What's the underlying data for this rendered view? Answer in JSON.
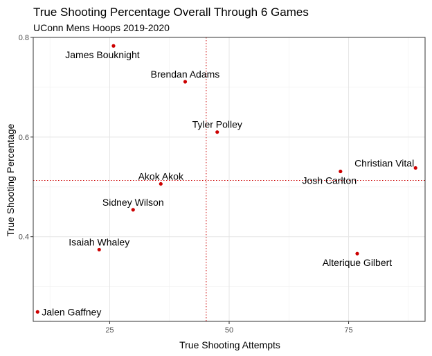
{
  "chart_data": {
    "type": "scatter",
    "title": "True Shooting Percentage Overall Through 6 Games",
    "subtitle": "UConn Mens Hoops 2019-2020",
    "xlabel": "True Shooting Attempts",
    "ylabel": "True Shooting Percentage",
    "xlim": [
      9.0,
      91.0
    ],
    "ylim": [
      0.23,
      0.8
    ],
    "x_ticks": [
      25,
      50,
      75
    ],
    "y_ticks": [
      0.4,
      0.6,
      0.8
    ],
    "x_tick_labels": [
      "25",
      "50",
      "75"
    ],
    "y_tick_labels": [
      "0.4",
      "0.6",
      "0.8"
    ],
    "grid": true,
    "point_color": "#cc0000",
    "reference_line_color": "#cc0000",
    "vline_x": 45.2,
    "hline_y": 0.513,
    "points": [
      {
        "label": "James Bouknight",
        "x": 25.8,
        "y": 0.783,
        "label_pos": "below-left"
      },
      {
        "label": "Brendan Adams",
        "x": 40.8,
        "y": 0.711,
        "label_pos": "above"
      },
      {
        "label": "Tyler Polley",
        "x": 47.5,
        "y": 0.61,
        "label_pos": "above"
      },
      {
        "label": "Christian Vital",
        "x": 89.0,
        "y": 0.538,
        "label_pos": "above-left"
      },
      {
        "label": "Josh Carlton",
        "x": 73.3,
        "y": 0.531,
        "label_pos": "below-left"
      },
      {
        "label": "Akok Akok",
        "x": 35.7,
        "y": 0.506,
        "label_pos": "above"
      },
      {
        "label": "Sidney Wilson",
        "x": 29.9,
        "y": 0.454,
        "label_pos": "above"
      },
      {
        "label": "Isaiah Whaley",
        "x": 22.8,
        "y": 0.374,
        "label_pos": "above"
      },
      {
        "label": "Alterique Gilbert",
        "x": 76.8,
        "y": 0.366,
        "label_pos": "below"
      },
      {
        "label": "Jalen Gaffney",
        "x": 9.9,
        "y": 0.249,
        "label_pos": "right"
      }
    ]
  }
}
